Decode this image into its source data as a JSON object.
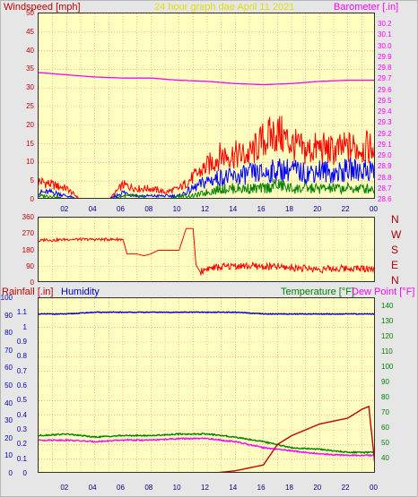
{
  "header": {
    "windspeed_label": "Windspeed [mph]",
    "date_label": "24 hour graph dae   April 11 2021",
    "barometer_label": "Barometer [.in]"
  },
  "lower_header": {
    "rainfall_label": "Rainfall [.in]",
    "humidity_label": "Humidity",
    "temperature_label": "Temperature [°F]",
    "dewpoint_label": "Dew Point [°F]"
  },
  "compass": [
    "N",
    "W",
    "S",
    "E",
    "N"
  ],
  "hours": [
    "02",
    "04",
    "06",
    "08",
    "10",
    "12",
    "14",
    "16",
    "18",
    "20",
    "22",
    "00"
  ],
  "colors": {
    "windspeed": "#ff0000",
    "barometer": "#ff00ff",
    "gust": "#0000ff",
    "wind_avg": "#008000",
    "direction": "#ff0000",
    "humidity": "#0000c0",
    "temperature": "#008000",
    "dewpoint": "#ff00ff",
    "rainfall": "#c00000",
    "plot_bg": "#ffffc0",
    "grid": "#ff8080"
  },
  "chart_data": [
    {
      "type": "line",
      "title": "24 hour graph dae   April 11 2021",
      "ylabel": "Windspeed [mph]",
      "ylabel_right": "Barometer [.in]",
      "ylim": [
        0,
        50
      ],
      "ylim_right": [
        28.6,
        30.3
      ],
      "yticks": [
        0,
        5,
        10,
        15,
        20,
        25,
        30,
        35,
        40,
        45,
        50
      ],
      "yticks_right": [
        28.6,
        28.7,
        28.8,
        28.9,
        29.0,
        29.1,
        29.2,
        29.3,
        29.4,
        29.5,
        29.6,
        29.7,
        29.8,
        29.9,
        30.0,
        30.1,
        30.2
      ],
      "xlim": [
        0,
        24
      ],
      "grid": true,
      "series": [
        {
          "name": "Barometer [.in]",
          "axis": "right",
          "x": [
            0,
            2,
            4,
            6,
            8,
            10,
            12,
            14,
            16,
            18,
            20,
            22,
            24
          ],
          "y": [
            29.76,
            29.74,
            29.72,
            29.71,
            29.71,
            29.69,
            29.68,
            29.66,
            29.65,
            29.66,
            29.68,
            29.69,
            29.69
          ]
        },
        {
          "x": [
            0,
            1,
            2,
            3,
            4,
            5,
            6,
            7,
            8,
            9,
            10,
            11,
            12,
            13,
            14,
            15,
            16,
            17,
            18,
            19,
            20,
            21,
            22,
            23,
            24
          ],
          "y": [
            5,
            4,
            3,
            0,
            0,
            0,
            4,
            3,
            3,
            2,
            3,
            6,
            9,
            12,
            12,
            12,
            16,
            18,
            15,
            13,
            14,
            13,
            14,
            14,
            14
          ]
        },
        {
          "x": [
            0,
            1,
            2,
            3,
            4,
            5,
            6,
            7,
            8,
            9,
            10,
            11,
            12,
            13,
            14,
            15,
            16,
            17,
            18,
            19,
            20,
            21,
            22,
            23,
            24
          ],
          "y": [
            2,
            2,
            1,
            0,
            0,
            0,
            2,
            1,
            1,
            1,
            1,
            3,
            5,
            6,
            6,
            7,
            7,
            8,
            8,
            7,
            8,
            7,
            8,
            8,
            8
          ]
        },
        {
          "x": [
            0,
            1,
            2,
            3,
            4,
            5,
            6,
            7,
            8,
            9,
            10,
            11,
            12,
            13,
            14,
            15,
            16,
            17,
            18,
            19,
            20,
            21,
            22,
            23,
            24
          ],
          "y": [
            1,
            1,
            0,
            0,
            0,
            0,
            1,
            1,
            0,
            0,
            1,
            1,
            2,
            3,
            3,
            3,
            3,
            4,
            3,
            3,
            3,
            3,
            3,
            3,
            3
          ]
        }
      ]
    },
    {
      "type": "line",
      "ylim": [
        0,
        360
      ],
      "yticks": [
        0,
        90,
        180,
        270,
        360
      ],
      "compass_labels": [
        "N",
        "W",
        "S",
        "E",
        "N"
      ],
      "xlim": [
        0,
        24
      ],
      "grid": true,
      "series": [
        {
          "x": [
            0,
            0.5,
            1,
            2,
            4,
            6,
            6.3,
            7,
            7.5,
            8,
            8.5,
            9,
            10,
            10.5,
            11,
            11.2,
            11.5,
            12,
            14,
            16,
            18,
            20,
            22,
            24
          ],
          "y": [
            230,
            240,
            235,
            240,
            240,
            240,
            160,
            160,
            150,
            160,
            180,
            180,
            180,
            300,
            300,
            100,
            60,
            80,
            95,
            90,
            85,
            75,
            80,
            80
          ]
        }
      ]
    },
    {
      "type": "line",
      "ylabel": "Rainfall [.in]",
      "ylabel_secondary": "Humidity",
      "ylabel_right": "Temperature [°F]",
      "ylabel_right_secondary": "Dew Point [°F]",
      "ylim": [
        0,
        1.2
      ],
      "ylim_secondary": [
        0,
        100
      ],
      "ylim_right": [
        30,
        145
      ],
      "yticks": [
        0,
        0.1,
        0.2,
        0.3,
        0.4,
        0.5,
        0.6,
        0.7,
        0.8,
        0.9,
        1,
        1.1
      ],
      "yticks_secondary": [
        0,
        10,
        20,
        30,
        40,
        50,
        60,
        70,
        80,
        90,
        100
      ],
      "yticks_right": [
        40,
        50,
        60,
        70,
        80,
        90,
        100,
        110,
        120,
        130,
        140
      ],
      "xlim": [
        0,
        24
      ],
      "grid": true,
      "series": [
        {
          "name": "Humidity",
          "axis": "secondary",
          "x": [
            0,
            2,
            4,
            6,
            8,
            10,
            12,
            14,
            16,
            18,
            20,
            22,
            24
          ],
          "y": [
            91,
            91,
            92,
            92,
            92,
            92,
            92,
            92,
            91,
            91,
            91,
            91,
            91
          ]
        },
        {
          "name": "Temperature [°F]",
          "axis": "right",
          "x": [
            0,
            2,
            4,
            6,
            8,
            10,
            12,
            14,
            16,
            18,
            20,
            22,
            24
          ],
          "y": [
            55,
            56,
            54,
            55,
            55,
            56,
            56,
            54,
            51,
            47,
            46,
            44,
            44
          ]
        },
        {
          "name": "Dew Point [°F]",
          "axis": "right",
          "x": [
            0,
            2,
            4,
            6,
            8,
            10,
            12,
            14,
            16,
            18,
            20,
            22,
            24
          ],
          "y": [
            52,
            52,
            51,
            52,
            52,
            53,
            53,
            51,
            47,
            45,
            43,
            42,
            42
          ]
        },
        {
          "name": "Rainfall [.in]",
          "axis": "left",
          "x": [
            0,
            2,
            4,
            6,
            8,
            10,
            12,
            14,
            16,
            17,
            18,
            19,
            20,
            21,
            22,
            23,
            23.5,
            24
          ],
          "y": [
            0,
            0,
            0,
            0,
            0,
            0,
            0,
            0.02,
            0.06,
            0.2,
            0.26,
            0.3,
            0.34,
            0.36,
            0.38,
            0.44,
            0.46,
            0
          ]
        }
      ]
    }
  ]
}
